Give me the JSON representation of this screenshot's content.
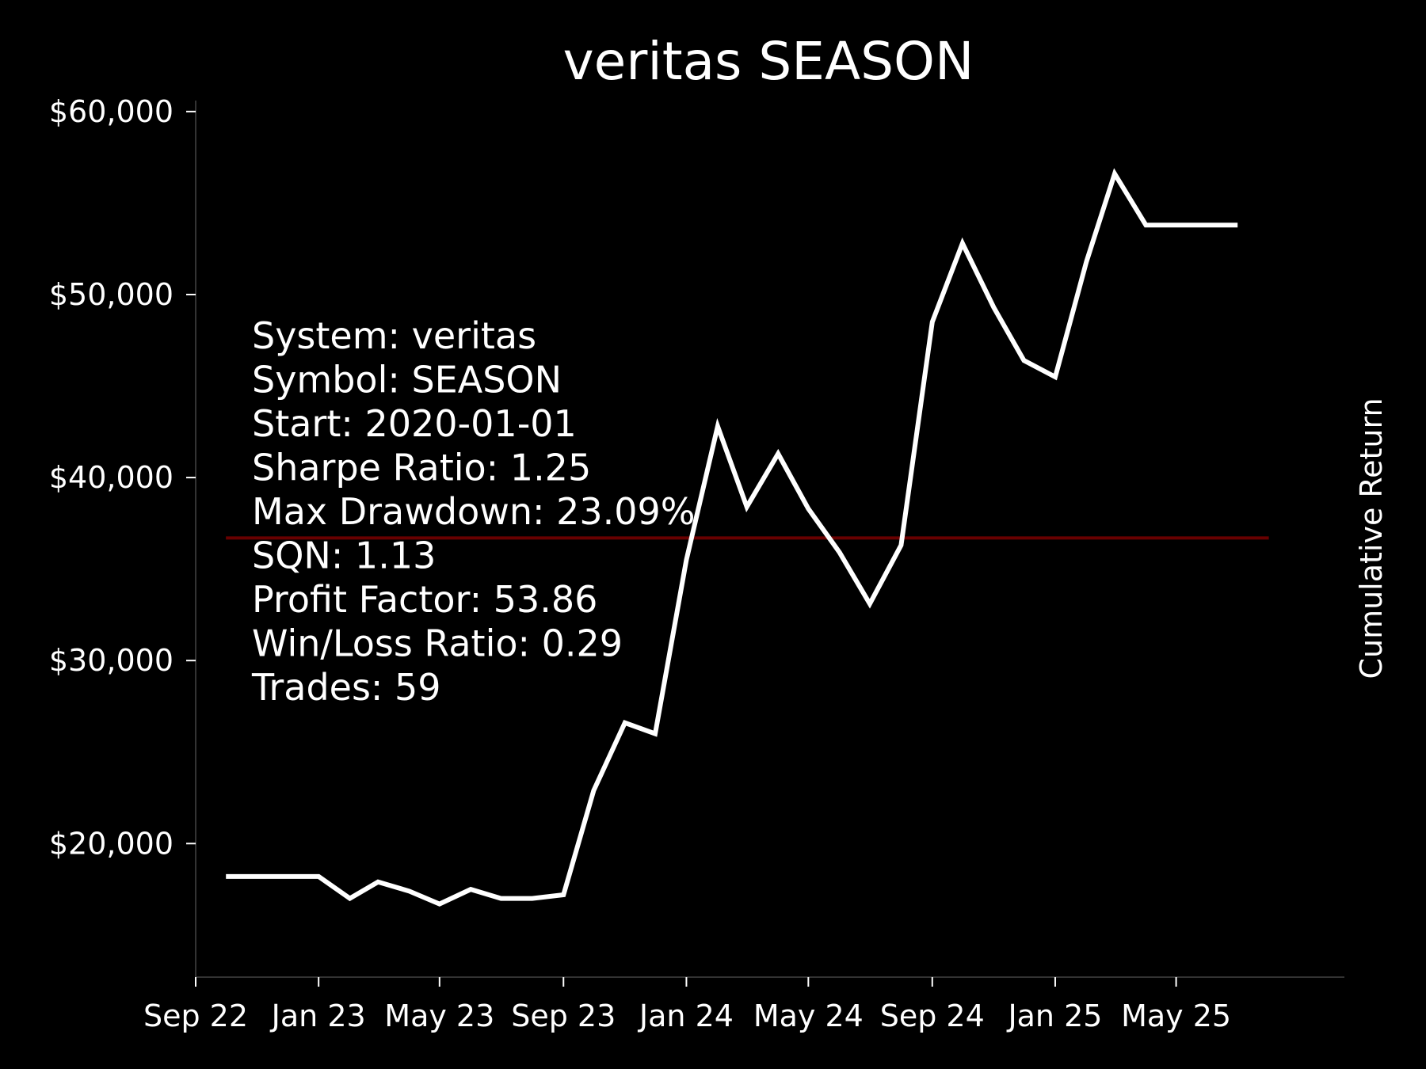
{
  "chart_data": {
    "type": "line",
    "title": "veritas SEASON",
    "xlabel": "",
    "ylabel": "",
    "ylabel_right": "Cumulative Return",
    "x_tick_labels": [
      "Sep 22",
      "Jan 23",
      "May 23",
      "Sep 23",
      "Jan 24",
      "May 24",
      "Sep 24",
      "Jan 25",
      "May 25"
    ],
    "x_tick_dates": [
      "2022-09-01",
      "2023-01-01",
      "2023-05-01",
      "2023-09-01",
      "2024-01-01",
      "2024-05-01",
      "2024-09-01",
      "2025-01-01",
      "2025-05-01"
    ],
    "xlim": [
      "2022-09-01",
      "2025-10-15"
    ],
    "y_tick_labels": [
      "$20,000",
      "$30,000",
      "$40,000",
      "$50,000",
      "$60,000"
    ],
    "y_ticks": [
      20000,
      30000,
      40000,
      50000,
      60000
    ],
    "ylim": [
      12700,
      60600
    ],
    "grid": false,
    "series": [
      {
        "color": "#ffffff",
        "x": [
          "2022-10-01",
          "2022-11-01",
          "2022-12-01",
          "2023-01-01",
          "2023-02-01",
          "2023-03-01",
          "2023-04-01",
          "2023-05-01",
          "2023-06-01",
          "2023-07-01",
          "2023-08-01",
          "2023-09-01",
          "2023-10-01",
          "2023-11-01",
          "2023-12-01",
          "2024-01-01",
          "2024-02-01",
          "2024-03-01",
          "2024-04-01",
          "2024-05-01",
          "2024-06-01",
          "2024-07-01",
          "2024-08-01",
          "2024-09-01",
          "2024-10-01",
          "2024-11-01",
          "2024-12-01",
          "2025-01-01",
          "2025-02-01",
          "2025-03-01",
          "2025-04-01",
          "2025-05-01",
          "2025-06-01",
          "2025-07-01"
        ],
        "y": [
          18200,
          18200,
          18200,
          18200,
          17000,
          17900,
          17400,
          16700,
          17500,
          17000,
          17000,
          17200,
          22900,
          26600,
          26000,
          35500,
          42800,
          38400,
          41300,
          38300,
          35900,
          33100,
          36300,
          48500,
          52800,
          49300,
          46400,
          45500,
          51800,
          56600,
          53800,
          53800,
          53800,
          53800
        ]
      }
    ],
    "reference_lines": [
      {
        "orientation": "horizontal",
        "y": 36700,
        "x_start": "2022-10-01",
        "x_end": "2025-08-01",
        "color": "#8b0000"
      }
    ],
    "annotations": [
      "System: veritas",
      "Symbol: SEASON",
      "Start: 2020-01-01",
      "Sharpe Ratio: 1.25",
      "Max Drawdown: 23.09%",
      "SQN: 1.13",
      "Profit Factor: 53.86",
      "Win/Loss Ratio: 0.29",
      "Trades: 59"
    ]
  },
  "colors": {
    "background": "#000000",
    "foreground": "#ffffff",
    "reference_line": "#8b0000",
    "highlight": "#888888"
  }
}
